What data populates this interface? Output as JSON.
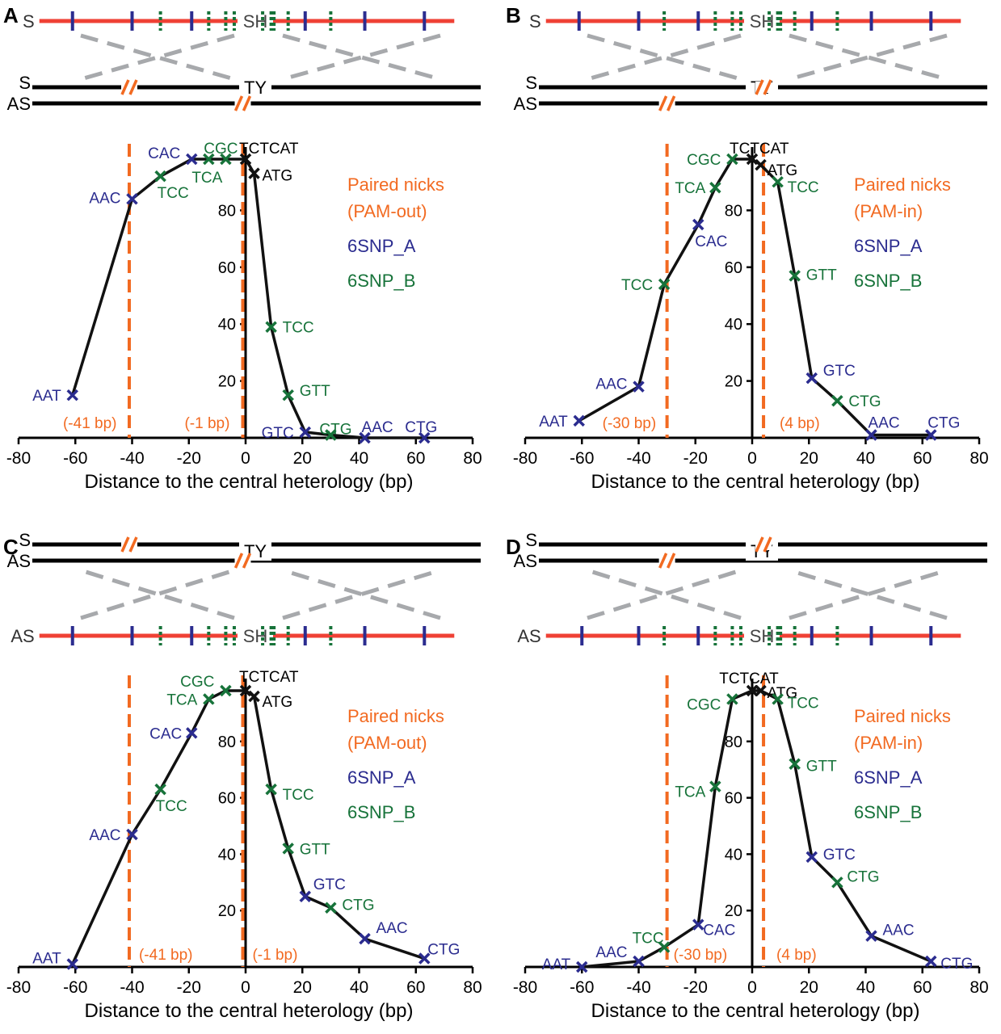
{
  "figure": {
    "xlabel": "Distance to the central heterology (bp)",
    "ylabel": "",
    "colors": {
      "orange": "#f26a21",
      "blue": "#2b2c8f",
      "green": "#17733a",
      "black": "#111111",
      "red": "#ef4135",
      "gray": "#a7a9ac"
    },
    "legend": {
      "snp_a": "6SNP_A",
      "snp_b": "6SNP_B"
    }
  },
  "chart_data": [
    {
      "panel": "A",
      "type": "line",
      "title": "Paired nicks",
      "subtitle": "(PAM-out)",
      "xlabel": "Distance to the central heterology (bp)",
      "xlim": [
        -80,
        80
      ],
      "ylim": [
        0,
        100
      ],
      "xticks": [
        "-80",
        "-60",
        "-40",
        "-20",
        "0",
        "20",
        "40",
        "60",
        "80"
      ],
      "yticks": [
        "20",
        "40",
        "60",
        "80"
      ],
      "nicks": [
        {
          "x": -41,
          "label": "(-41 bp)"
        },
        {
          "x": -1,
          "label": "(-1 bp)"
        }
      ],
      "schematic": {
        "order": "top",
        "strand_top": "S",
        "strand_bottom": "AS",
        "donor_strand": "S",
        "donor_center": "SH",
        "target_center": "TY",
        "nick_top_x": [
          -41
        ],
        "nick_bottom_x": [
          -1
        ]
      },
      "points": [
        {
          "x": -61,
          "y": 15,
          "label": "AAT",
          "set": "A"
        },
        {
          "x": -40,
          "y": 84,
          "label": "AAC",
          "set": "A"
        },
        {
          "x": -30,
          "y": 92,
          "label": "TCC",
          "set": "B"
        },
        {
          "x": -19,
          "y": 98,
          "label": "CAC",
          "set": "A"
        },
        {
          "x": -13,
          "y": 98,
          "label": "TCA",
          "set": "B"
        },
        {
          "x": -7,
          "y": 98,
          "label": "CGC",
          "set": "B"
        },
        {
          "x": 0,
          "y": 98,
          "label": "TCTCAT",
          "set": "C"
        },
        {
          "x": 3,
          "y": 93,
          "label": "ATG",
          "set": "C"
        },
        {
          "x": 9,
          "y": 39,
          "label": "TCC",
          "set": "B"
        },
        {
          "x": 15,
          "y": 15,
          "label": "GTT",
          "set": "B"
        },
        {
          "x": 21,
          "y": 2,
          "label": "GTC",
          "set": "A"
        },
        {
          "x": 30,
          "y": 1,
          "label": "CTG",
          "set": "B"
        },
        {
          "x": 42,
          "y": 0,
          "label": "AAC",
          "set": "A"
        },
        {
          "x": 63,
          "y": 0,
          "label": "CTG",
          "set": "A"
        }
      ]
    },
    {
      "panel": "B",
      "type": "line",
      "title": "Paired nicks",
      "subtitle": "(PAM-in)",
      "xlabel": "Distance to the central heterology (bp)",
      "xlim": [
        -80,
        80
      ],
      "ylim": [
        0,
        100
      ],
      "xticks": [
        "-80",
        "-60",
        "-40",
        "-20",
        "0",
        "20",
        "40",
        "60",
        "80"
      ],
      "yticks": [
        "20",
        "40",
        "60",
        "80"
      ],
      "nicks": [
        {
          "x": -30,
          "label": "(-30 bp)"
        },
        {
          "x": 4,
          "label": "(4 bp)"
        }
      ],
      "schematic": {
        "order": "top",
        "strand_top": "S",
        "strand_bottom": "AS",
        "donor_strand": "S",
        "donor_center": "SH",
        "target_center": "TY",
        "nick_top_x": [
          4
        ],
        "nick_bottom_x": [
          -30
        ]
      },
      "points": [
        {
          "x": -61,
          "y": 6,
          "label": "AAT",
          "set": "A"
        },
        {
          "x": -40,
          "y": 18,
          "label": "AAC",
          "set": "A"
        },
        {
          "x": -31,
          "y": 54,
          "label": "TCC",
          "set": "B"
        },
        {
          "x": -19,
          "y": 75,
          "label": "CAC",
          "set": "A"
        },
        {
          "x": -13,
          "y": 88,
          "label": "TCA",
          "set": "B"
        },
        {
          "x": -7,
          "y": 98,
          "label": "CGC",
          "set": "B"
        },
        {
          "x": 0,
          "y": 98,
          "label": "TCTCAT",
          "set": "C"
        },
        {
          "x": 3,
          "y": 96,
          "label": "ATG",
          "set": "C"
        },
        {
          "x": 9,
          "y": 90,
          "label": "TCC",
          "set": "B"
        },
        {
          "x": 15,
          "y": 57,
          "label": "GTT",
          "set": "B"
        },
        {
          "x": 21,
          "y": 21,
          "label": "GTC",
          "set": "A"
        },
        {
          "x": 30,
          "y": 13,
          "label": "CTG",
          "set": "B"
        },
        {
          "x": 42,
          "y": 1,
          "label": "AAC",
          "set": "A"
        },
        {
          "x": 63,
          "y": 1,
          "label": "CTG",
          "set": "A"
        }
      ]
    },
    {
      "panel": "C",
      "type": "line",
      "title": "Paired nicks",
      "subtitle": "(PAM-out)",
      "xlabel": "Distance to the central heterology (bp)",
      "xlim": [
        -80,
        80
      ],
      "ylim": [
        0,
        100
      ],
      "xticks": [
        "-80",
        "-60",
        "-40",
        "-20",
        "0",
        "20",
        "40",
        "60",
        "80"
      ],
      "yticks": [
        "20",
        "40",
        "60",
        "80"
      ],
      "nicks": [
        {
          "x": -41,
          "label": "(-41 bp)"
        },
        {
          "x": -1,
          "label": "(-1 bp)"
        }
      ],
      "schematic": {
        "order": "bottom",
        "strand_top": "S",
        "strand_bottom": "AS",
        "donor_strand": "AS",
        "donor_center": "SH",
        "target_center": "TY",
        "nick_top_x": [
          -41
        ],
        "nick_bottom_x": [
          -1
        ]
      },
      "points": [
        {
          "x": -61,
          "y": 1,
          "label": "AAT",
          "set": "A"
        },
        {
          "x": -40,
          "y": 47,
          "label": "AAC",
          "set": "A"
        },
        {
          "x": -30,
          "y": 63,
          "label": "TCC",
          "set": "B"
        },
        {
          "x": -19,
          "y": 83,
          "label": "CAC",
          "set": "A"
        },
        {
          "x": -13,
          "y": 95,
          "label": "TCA",
          "set": "B"
        },
        {
          "x": -7,
          "y": 98,
          "label": "CGC",
          "set": "B"
        },
        {
          "x": 0,
          "y": 98,
          "label": "TCTCAT",
          "set": "C"
        },
        {
          "x": 3,
          "y": 96,
          "label": "ATG",
          "set": "C"
        },
        {
          "x": 9,
          "y": 63,
          "label": "TCC",
          "set": "B"
        },
        {
          "x": 15,
          "y": 42,
          "label": "GTT",
          "set": "B"
        },
        {
          "x": 21,
          "y": 25,
          "label": "GTC",
          "set": "A"
        },
        {
          "x": 30,
          "y": 21,
          "label": "CTG",
          "set": "B"
        },
        {
          "x": 42,
          "y": 10,
          "label": "AAC",
          "set": "A"
        },
        {
          "x": 63,
          "y": 3,
          "label": "CTG",
          "set": "A"
        }
      ]
    },
    {
      "panel": "D",
      "type": "line",
      "title": "Paired nicks",
      "subtitle": "(PAM-in)",
      "xlabel": "Distance to the central heterology (bp)",
      "xlim": [
        -80,
        80
      ],
      "ylim": [
        0,
        100
      ],
      "xticks": [
        "-80",
        "-60",
        "-40",
        "-20",
        "0",
        "20",
        "40",
        "60",
        "80"
      ],
      "yticks": [
        "20",
        "40",
        "60",
        "80"
      ],
      "nicks": [
        {
          "x": -30,
          "label": "(-30 bp)"
        },
        {
          "x": 4,
          "label": "(4 bp)"
        }
      ],
      "schematic": {
        "order": "bottom",
        "strand_top": "S",
        "strand_bottom": "AS",
        "donor_strand": "AS",
        "donor_center": "SH",
        "target_center": "TY",
        "nick_top_x": [
          4
        ],
        "nick_bottom_x": [
          -30
        ]
      },
      "points": [
        {
          "x": -60,
          "y": 0,
          "label": "AAT",
          "set": "A"
        },
        {
          "x": -40,
          "y": 2,
          "label": "AAC",
          "set": "A"
        },
        {
          "x": -31,
          "y": 7,
          "label": "TCC",
          "set": "B"
        },
        {
          "x": -19,
          "y": 15,
          "label": "CAC",
          "set": "A"
        },
        {
          "x": -13,
          "y": 64,
          "label": "TCA",
          "set": "B"
        },
        {
          "x": -7,
          "y": 95,
          "label": "CGC",
          "set": "B"
        },
        {
          "x": 0,
          "y": 98,
          "label": "TCTCAT",
          "set": "C"
        },
        {
          "x": 3,
          "y": 98,
          "label": "ATG",
          "set": "C"
        },
        {
          "x": 9,
          "y": 95,
          "label": "TCC",
          "set": "B"
        },
        {
          "x": 15,
          "y": 72,
          "label": "GTT",
          "set": "B"
        },
        {
          "x": 21,
          "y": 39,
          "label": "GTC",
          "set": "A"
        },
        {
          "x": 30,
          "y": 30,
          "label": "CTG",
          "set": "B"
        },
        {
          "x": 42,
          "y": 11,
          "label": "AAC",
          "set": "A"
        },
        {
          "x": 63,
          "y": 2,
          "label": "CTG",
          "set": "A"
        }
      ]
    }
  ]
}
